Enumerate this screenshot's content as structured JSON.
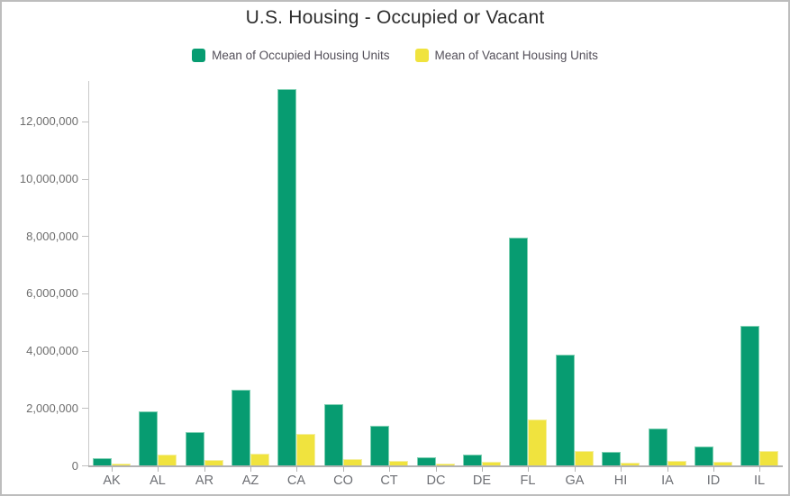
{
  "title": "U.S. Housing - Occupied or Vacant",
  "chart_data": {
    "type": "bar",
    "title": "U.S. Housing - Occupied or Vacant",
    "xlabel": "",
    "ylabel": "",
    "grid": false,
    "legend_position": "top",
    "background": "#ffffff",
    "categories": [
      "AK",
      "AL",
      "AR",
      "AZ",
      "CA",
      "CO",
      "CT",
      "DC",
      "DE",
      "FL",
      "GA",
      "HI",
      "IA",
      "ID",
      "IL"
    ],
    "series": [
      {
        "key": "occupied",
        "name": "Mean of Occupied Housing Units",
        "color": "#079c71",
        "edge_color": "#7fd0b3",
        "values": [
          240000,
          1880000,
          1150000,
          2640000,
          13130000,
          2150000,
          1380000,
          280000,
          370000,
          7950000,
          3860000,
          460000,
          1280000,
          650000,
          4870000
        ]
      },
      {
        "key": "vacant",
        "name": "Mean of Vacant Housing Units",
        "color": "#f0e33e",
        "edge_color": "#f5efa0",
        "values": [
          50000,
          390000,
          200000,
          400000,
          1110000,
          230000,
          160000,
          50000,
          120000,
          1610000,
          490000,
          90000,
          160000,
          120000,
          500000
        ]
      }
    ],
    "y_ticks": [
      0,
      2000000,
      4000000,
      6000000,
      8000000,
      10000000,
      12000000
    ],
    "y_tick_labels": [
      "0",
      "2,000,000",
      "4,000,000",
      "6,000,000",
      "8,000,000",
      "10,000,000",
      "12,000,000"
    ],
    "ylim": [
      0,
      13410000
    ]
  },
  "colors": {
    "axis_line": "#b3b3b3",
    "y_axis_line": "#c9c9c9",
    "tick_label": "#6e6e6e",
    "title_text": "#2e2e2e",
    "legend_text": "#534f59"
  }
}
